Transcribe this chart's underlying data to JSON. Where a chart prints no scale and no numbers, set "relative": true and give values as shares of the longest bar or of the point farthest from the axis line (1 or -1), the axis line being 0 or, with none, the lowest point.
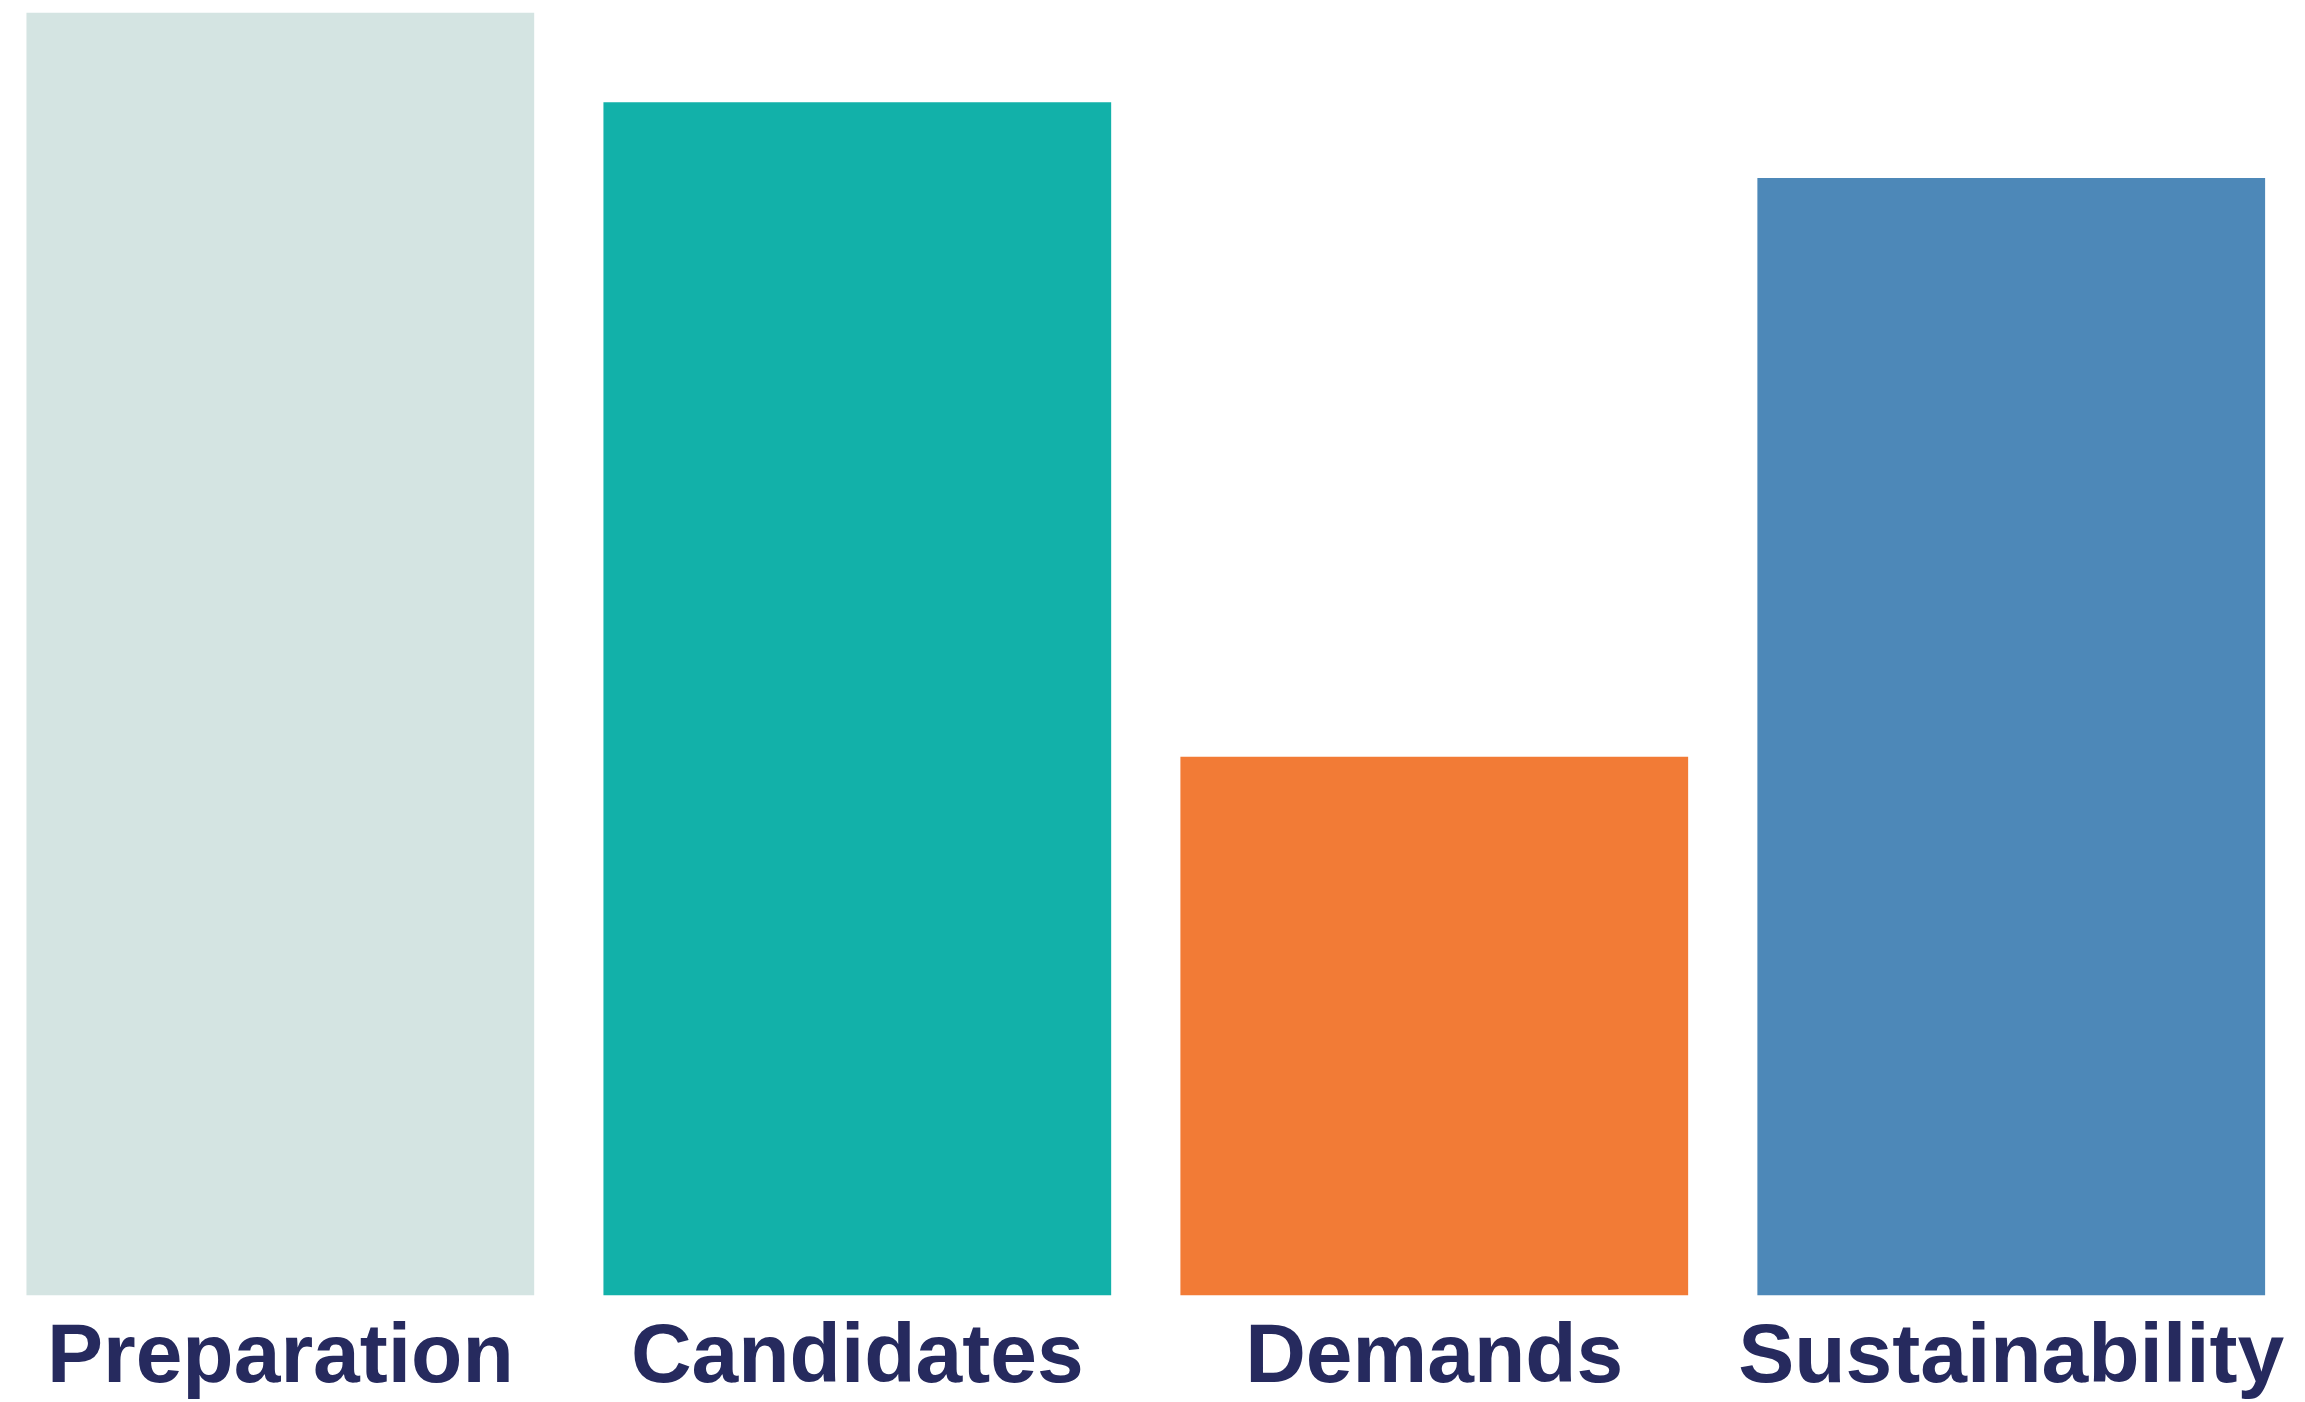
{
  "chart_data": {
    "type": "bar",
    "relative": true,
    "categories": [
      "Preparation",
      "Candidates",
      "Demands",
      "Sustainability"
    ],
    "values": [
      1,
      0.93,
      0.42,
      0.871
    ],
    "colors": [
      "#d4e4e2",
      "#12b1a9",
      "#f27b36",
      "#4d88b8"
    ],
    "grid": false
  }
}
